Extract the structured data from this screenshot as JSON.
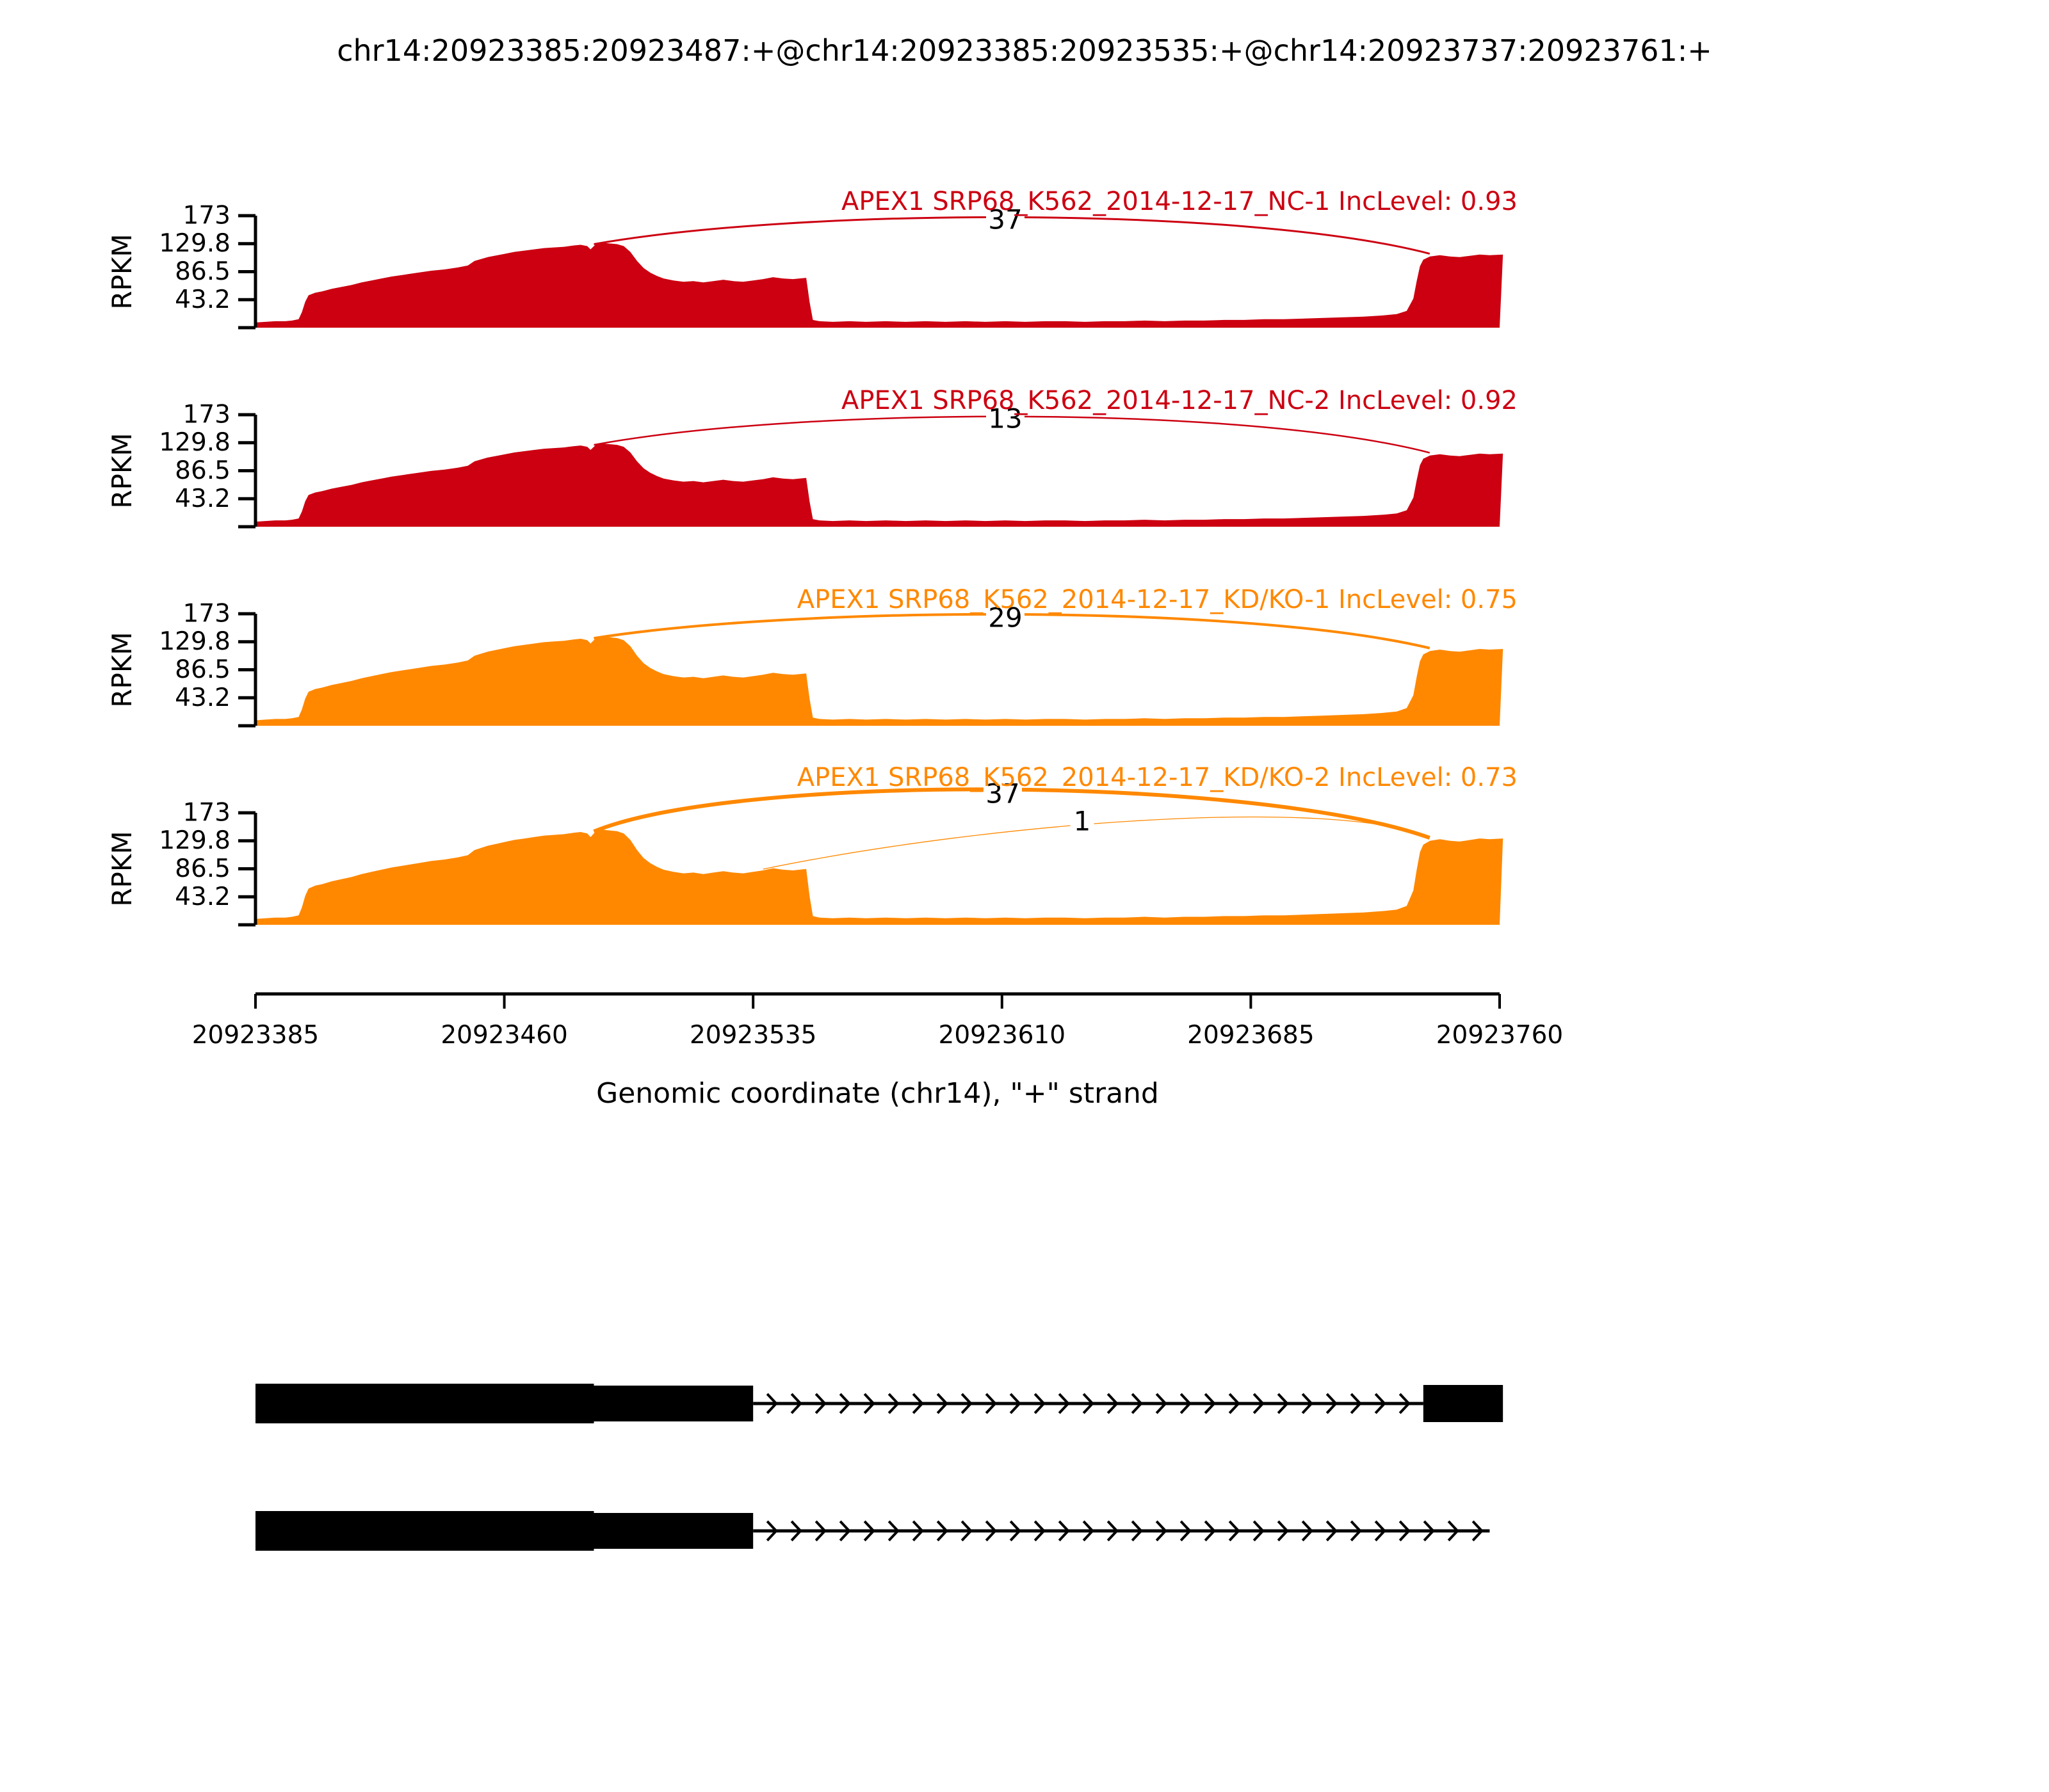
{
  "title": "chr14:20923385:20923487:+@chr14:20923385:20923535:+@chr14:20923737:20923761:+",
  "chart_data": {
    "type": "area",
    "subtype": "sashimi-plot",
    "title": "chr14:20923385:20923487:+@chr14:20923385:20923535:+@chr14:20923737:20923761:+",
    "xlabel": "Genomic coordinate (chr14), \"+\" strand",
    "ylabel": "RPKM",
    "x_domain": [
      20923385,
      20923760
    ],
    "x_ticks": [
      20923385,
      20923460,
      20923535,
      20923610,
      20923685,
      20923760
    ],
    "y_ticks": [
      173,
      129.8,
      86.5,
      43.2
    ],
    "y_max": 173,
    "grid": false,
    "legend_position": "none",
    "colors": {
      "group1": "#CC0011",
      "group2": "#FF8800",
      "gene_model": "#000000",
      "junction_count_text": "#000000"
    },
    "base_profile": [
      [
        0,
        8
      ],
      [
        3,
        9
      ],
      [
        6,
        10
      ],
      [
        9,
        10
      ],
      [
        11,
        11
      ],
      [
        13,
        13
      ],
      [
        14,
        24
      ],
      [
        15,
        40
      ],
      [
        16,
        50
      ],
      [
        18,
        54
      ],
      [
        20,
        56
      ],
      [
        23,
        60
      ],
      [
        26,
        63
      ],
      [
        29,
        66
      ],
      [
        32,
        70
      ],
      [
        35,
        73
      ],
      [
        38,
        76
      ],
      [
        41,
        79
      ],
      [
        45,
        82
      ],
      [
        49,
        85
      ],
      [
        53,
        88
      ],
      [
        57,
        90
      ],
      [
        61,
        93
      ],
      [
        64,
        96
      ],
      [
        66,
        103
      ],
      [
        68,
        106
      ],
      [
        70,
        109
      ],
      [
        73,
        112
      ],
      [
        75,
        114
      ],
      [
        78,
        117
      ],
      [
        81,
        119
      ],
      [
        84,
        121
      ],
      [
        87,
        123
      ],
      [
        90,
        124
      ],
      [
        93,
        125
      ],
      [
        96,
        127
      ],
      [
        98,
        128
      ],
      [
        100,
        126
      ],
      [
        101,
        121
      ],
      [
        102,
        126
      ],
      [
        103,
        131
      ],
      [
        105,
        131
      ],
      [
        107,
        130
      ],
      [
        109,
        129
      ],
      [
        111,
        126
      ],
      [
        113,
        117
      ],
      [
        115,
        103
      ],
      [
        117,
        92
      ],
      [
        119,
        85
      ],
      [
        121,
        80
      ],
      [
        123,
        76
      ],
      [
        126,
        73
      ],
      [
        129,
        71
      ],
      [
        132,
        72
      ],
      [
        135,
        70
      ],
      [
        138,
        72
      ],
      [
        141,
        74
      ],
      [
        144,
        72
      ],
      [
        147,
        71
      ],
      [
        150,
        73
      ],
      [
        153,
        75
      ],
      [
        156,
        78
      ],
      [
        159,
        76
      ],
      [
        162,
        75
      ],
      [
        164,
        76
      ],
      [
        166,
        77
      ],
      [
        167,
        40
      ],
      [
        168,
        12
      ],
      [
        170,
        10
      ],
      [
        174,
        9
      ],
      [
        179,
        10
      ],
      [
        184,
        9
      ],
      [
        190,
        10
      ],
      [
        196,
        9
      ],
      [
        202,
        10
      ],
      [
        208,
        9
      ],
      [
        214,
        10
      ],
      [
        220,
        9
      ],
      [
        226,
        10
      ],
      [
        232,
        9
      ],
      [
        238,
        10
      ],
      [
        244,
        10
      ],
      [
        250,
        9
      ],
      [
        256,
        10
      ],
      [
        262,
        10
      ],
      [
        268,
        11
      ],
      [
        274,
        10
      ],
      [
        280,
        11
      ],
      [
        286,
        11
      ],
      [
        292,
        12
      ],
      [
        298,
        12
      ],
      [
        304,
        13
      ],
      [
        310,
        13
      ],
      [
        316,
        14
      ],
      [
        322,
        15
      ],
      [
        328,
        16
      ],
      [
        334,
        17
      ],
      [
        340,
        19
      ],
      [
        344,
        21
      ],
      [
        347,
        26
      ],
      [
        349,
        45
      ],
      [
        350,
        72
      ],
      [
        351,
        95
      ],
      [
        352,
        105
      ],
      [
        354,
        110
      ],
      [
        357,
        112
      ],
      [
        360,
        110
      ],
      [
        363,
        109
      ],
      [
        366,
        111
      ],
      [
        369,
        113
      ],
      [
        372,
        112
      ],
      [
        376,
        113
      ]
    ],
    "tracks": [
      {
        "label": "APEX1 SRP68_K562_2014-12-17_NC-1 IncLevel: 0.93",
        "sample": "NC-1",
        "inc_level": 0.93,
        "color": "#CC0011",
        "scale": 1.0,
        "right_scale": 1.0,
        "junctions": [
          {
            "count": 37,
            "from_bp": 20923487,
            "to_bp": 20923737,
            "stroke": 3,
            "style": "normal"
          }
        ]
      },
      {
        "label": "APEX1 SRP68_K562_2014-12-17_NC-2 IncLevel: 0.92",
        "sample": "NC-2",
        "inc_level": 0.92,
        "color": "#CC0011",
        "scale": 0.98,
        "right_scale": 1.0,
        "junctions": [
          {
            "count": 13,
            "from_bp": 20923487,
            "to_bp": 20923737,
            "stroke": 2.5,
            "style": "normal"
          }
        ]
      },
      {
        "label": "APEX1 SRP68_K562_2014-12-17_KD/KO-1 IncLevel: 0.75",
        "sample": "KD/KO-1",
        "inc_level": 0.75,
        "color": "#FF8800",
        "scale": 1.05,
        "right_scale": 1.05,
        "junctions": [
          {
            "count": 29,
            "from_bp": 20923487,
            "to_bp": 20923737,
            "stroke": 4,
            "style": "normal"
          }
        ]
      },
      {
        "label": "APEX1 SRP68_K562_2014-12-17_KD/KO-2 IncLevel: 0.73",
        "sample": "KD/KO-2",
        "inc_level": 0.73,
        "color": "#FF8800",
        "scale": 1.12,
        "right_scale": 1.18,
        "junctions": [
          {
            "count": 37,
            "from_bp": 20923487,
            "to_bp": 20923737,
            "stroke": 6,
            "style": "high"
          },
          {
            "count": 1,
            "from_bp": 20923538,
            "to_bp": 20923737,
            "stroke": 1.3,
            "style": "low"
          }
        ]
      }
    ],
    "gene_model": {
      "color": "#000000",
      "rows": [
        {
          "name": "isoform-long-exon",
          "line_y": 2193,
          "line_from_bp": 20923535,
          "line_to_bp": 20923737,
          "exons": [
            {
              "from_bp": 20923385,
              "to_bp": 20923487,
              "top": 2162,
              "height": 62
            },
            {
              "from_bp": 20923487,
              "to_bp": 20923535,
              "top": 2165,
              "height": 56
            },
            {
              "from_bp": 20923737,
              "to_bp": 20923761,
              "top": 2164,
              "height": 58
            }
          ]
        },
        {
          "name": "isoform-short-exon",
          "line_y": 2392,
          "line_from_bp": 20923535,
          "line_to_bp": 20923757,
          "exons": [
            {
              "from_bp": 20923385,
              "to_bp": 20923487,
              "top": 2361,
              "height": 62
            },
            {
              "from_bp": 20923487,
              "to_bp": 20923535,
              "top": 2364,
              "height": 56
            }
          ]
        }
      ]
    }
  }
}
